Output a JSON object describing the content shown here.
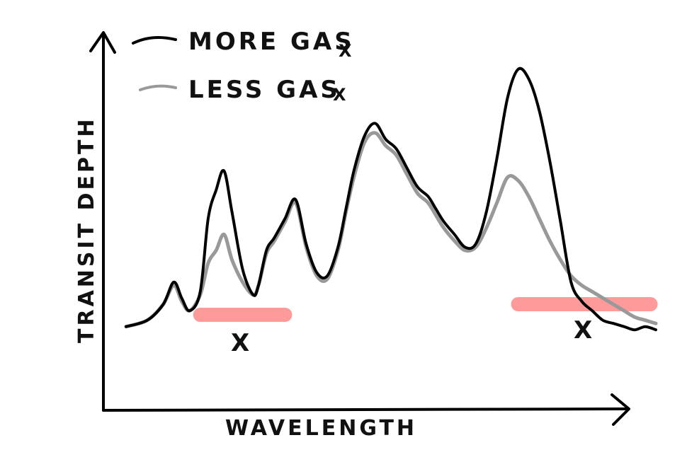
{
  "chart_data": {
    "type": "line",
    "xlabel": "WAVELENGTH",
    "ylabel": "TRANSIT DEPTH",
    "xlim": [
      0,
      100
    ],
    "ylim": [
      0,
      100
    ],
    "grid": false,
    "legend_position": "top-left",
    "series": [
      {
        "name": "MORE GAS",
        "name_subscript": "X",
        "color": "#000000",
        "x": [
          0,
          4,
          7,
          9,
          10.5,
          12,
          14,
          15.5,
          17,
          18.5,
          20,
          22,
          24,
          25,
          26.5,
          28,
          30,
          32,
          34,
          36,
          38,
          40,
          41.5,
          43,
          45,
          47,
          49,
          51,
          53,
          55,
          57,
          58.5,
          60,
          62,
          64,
          66,
          68,
          70,
          72,
          74,
          76,
          78,
          80,
          82,
          84,
          86,
          88,
          90,
          92,
          94,
          96,
          98,
          100
        ],
        "y": [
          19,
          21,
          26,
          33,
          28,
          24,
          30,
          53,
          62,
          68,
          55,
          37,
          29,
          32,
          43,
          47,
          53,
          59,
          45,
          36,
          35,
          44,
          56,
          68,
          79,
          83,
          78,
          75,
          69,
          63,
          60,
          56,
          52,
          48,
          44,
          45,
          55,
          72,
          91,
          100,
          97,
          87,
          71,
          52,
          33,
          27,
          24,
          21,
          20,
          19,
          18,
          19,
          18
        ],
        "note": "values are relative sketch heights estimated from the drawing"
      },
      {
        "name": "LESS GAS",
        "name_subscript": "X",
        "color": "#999999",
        "x": [
          0,
          4,
          7,
          9,
          10.5,
          12,
          14,
          15.5,
          17,
          18.5,
          20,
          22,
          24,
          25,
          26.5,
          28,
          30,
          32,
          34,
          36,
          38,
          40,
          41.5,
          43,
          45,
          47,
          49,
          51,
          53,
          55,
          57,
          58.5,
          60,
          62,
          64,
          66,
          68,
          70,
          72,
          74,
          76,
          78,
          80,
          82,
          84,
          86,
          88,
          90,
          92,
          94,
          96,
          98,
          100
        ],
        "y": [
          19,
          21,
          26,
          32,
          27,
          24,
          29,
          39,
          43,
          48,
          40,
          33,
          29,
          32,
          42,
          46,
          52,
          58,
          44,
          35,
          34,
          43,
          55,
          66,
          77,
          80,
          76,
          73,
          67,
          61,
          58,
          54,
          50,
          46,
          43,
          44,
          50,
          58,
          66,
          65,
          60,
          53,
          46,
          40,
          35,
          32,
          30,
          28,
          26,
          24,
          22,
          21,
          20
        ]
      }
    ],
    "highlights": [
      {
        "x_range": [
          14,
          30
        ],
        "color": "#ff9a9a",
        "label": "X"
      },
      {
        "x_range": [
          74,
          99
        ],
        "color": "#ff9a9a",
        "label": "X"
      }
    ]
  }
}
